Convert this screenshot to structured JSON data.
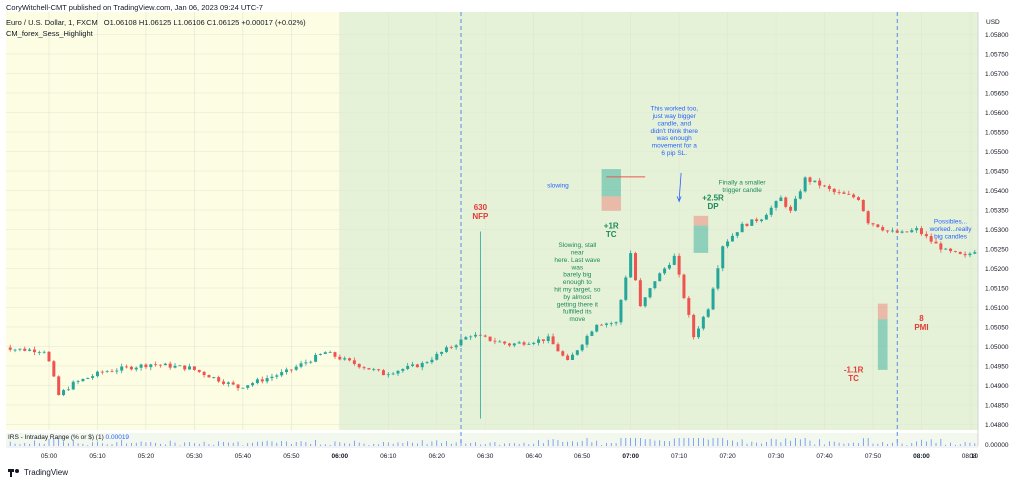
{
  "header": {
    "published": "CoryWitchell-CMT published on TradingView.com, Jan 06, 2023 09:24 UTC-7",
    "symbol": "Euro / U.S. Dollar, 1, FXCM",
    "ohlc": "O1.06108 H1.06125 L1.06106 C1.06125 +0.00017 (+0.02%)",
    "indicator": "CM_forex_Sess_Highlight"
  },
  "footer": {
    "brand": "TradingView"
  },
  "colors": {
    "up": "#26a69a",
    "down": "#ef5350",
    "premarket_bg": "#fdfde3",
    "session_bg": "#e6f2d8",
    "annotation_blue": "#2962ff",
    "annotation_green": "#1b8a5a",
    "annotation_red": "#e53935"
  },
  "chart_data": {
    "type": "candlestick",
    "currency": "USD",
    "x_ticks": [
      "05:00",
      "05:10",
      "05:20",
      "05:30",
      "05:40",
      "05:50",
      "06:00",
      "06:10",
      "06:20",
      "06:30",
      "06:40",
      "06:50",
      "07:00",
      "07:10",
      "07:20",
      "07:30",
      "07:40",
      "07:50",
      "08:00",
      "08:10",
      "08"
    ],
    "x_ticks_bold": [
      "06:00",
      "07:00",
      "08:00"
    ],
    "y_ticks": [
      "1.05800",
      "1.05750",
      "1.05700",
      "1.05650",
      "1.05600",
      "1.05550",
      "1.05500",
      "1.05450",
      "1.05400",
      "1.05350",
      "1.05300",
      "1.05250",
      "1.05200",
      "1.05150",
      "1.05100",
      "1.05050",
      "1.05000",
      "1.04950",
      "1.04900",
      "1.04850",
      "1.04800"
    ],
    "ylim": [
      1.0478,
      1.0585
    ],
    "session_start_time": "06:00",
    "vertical_markers": [
      "06:25",
      "07:55"
    ],
    "annotations": [
      {
        "text": "630",
        "time": "06:29",
        "price": 1.0535,
        "color": "red"
      },
      {
        "text": "NFP",
        "time": "06:29",
        "price": 1.05327,
        "color": "red"
      },
      {
        "text": "slowing",
        "time": "06:45",
        "price": 1.05408,
        "color": "blue"
      },
      {
        "text": "+1R",
        "time": "06:56",
        "price": 1.05303,
        "color": "green"
      },
      {
        "text": "TC",
        "time": "06:56",
        "price": 1.05281,
        "color": "green"
      },
      {
        "text": "Slowing, stall\nnear\nhere. Last wave\nwas\nbarely big\nenough to\nhit my target, so\nby almost\ngetting there it\nfulfilled its\nmove",
        "time": "06:49",
        "price": 1.05255,
        "color": "green"
      },
      {
        "text": "This worked too,\njust way bigger\ncandle, and\ndidn't think there\nwas enough\nmovement for a\n6 pip SL.",
        "time": "07:09",
        "price": 1.05605,
        "color": "blue"
      },
      {
        "text": "Finally a smaller\ntrigger candle",
        "time": "07:23",
        "price": 1.05415,
        "color": "green"
      },
      {
        "text": "+2.5R",
        "time": "07:17",
        "price": 1.05375,
        "color": "green"
      },
      {
        "text": "DP",
        "time": "07:17",
        "price": 1.05353,
        "color": "green"
      },
      {
        "text": "-1.1R",
        "time": "07:46",
        "price": 1.04933,
        "color": "red"
      },
      {
        "text": "TC",
        "time": "07:46",
        "price": 1.04911,
        "color": "red"
      },
      {
        "text": "8",
        "time": "08:00",
        "price": 1.05065,
        "color": "red"
      },
      {
        "text": "PMI",
        "time": "08:00",
        "price": 1.05042,
        "color": "red"
      },
      {
        "text": "Possibles...\nworked...really\nbig candles",
        "time": "08:06",
        "price": 1.05315,
        "color": "blue"
      }
    ],
    "trade_boxes": [
      {
        "t0": "06:54",
        "t1": "06:58",
        "price_low": 1.05348,
        "price_high": 1.05385,
        "kind": "loss"
      },
      {
        "t0": "06:54",
        "t1": "06:58",
        "price_low": 1.05385,
        "price_high": 1.05455,
        "kind": "profit"
      },
      {
        "t0": "07:13",
        "t1": "07:16",
        "price_low": 1.0524,
        "price_high": 1.0531,
        "kind": "profit"
      },
      {
        "t0": "07:13",
        "t1": "07:16",
        "price_low": 1.0531,
        "price_high": 1.05335,
        "kind": "loss"
      },
      {
        "t0": "07:51",
        "t1": "07:53",
        "price_low": 1.0494,
        "price_high": 1.0507,
        "kind": "profit"
      },
      {
        "t0": "07:51",
        "t1": "07:53",
        "price_low": 1.0507,
        "price_high": 1.0511,
        "kind": "loss"
      }
    ],
    "indicator_pane": {
      "label": "IRS - Intraday Range (% or $) (1)",
      "value": "0.00019",
      "ylabel": "0.00000"
    }
  }
}
